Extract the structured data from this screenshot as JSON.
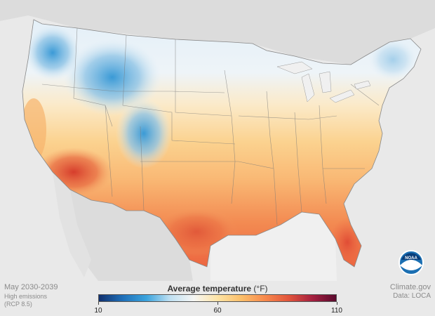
{
  "map": {
    "period": "May 2030-2039",
    "scenario_line1": "High emissions",
    "scenario_line2": "(RCP 8.5)",
    "credit_line1": "Climate.gov",
    "credit_line2": "Data: LOCA",
    "logo_text": "NOAA"
  },
  "legend": {
    "title": "Average temperature",
    "unit": "(°F)",
    "ticks": [
      "10",
      "60",
      "110"
    ],
    "min": 10,
    "max": 110,
    "colors": [
      "#11306e",
      "#1f6fb8",
      "#3aa3dd",
      "#bfe0f2",
      "#f6f6f4",
      "#fde4a6",
      "#fbbf6a",
      "#f7894c",
      "#e2553c",
      "#a5203f",
      "#5a0a2e"
    ]
  },
  "colors": {
    "background": "#e9e9e9",
    "land": "#d5d5d5",
    "ocean": "#f2f2f2"
  }
}
